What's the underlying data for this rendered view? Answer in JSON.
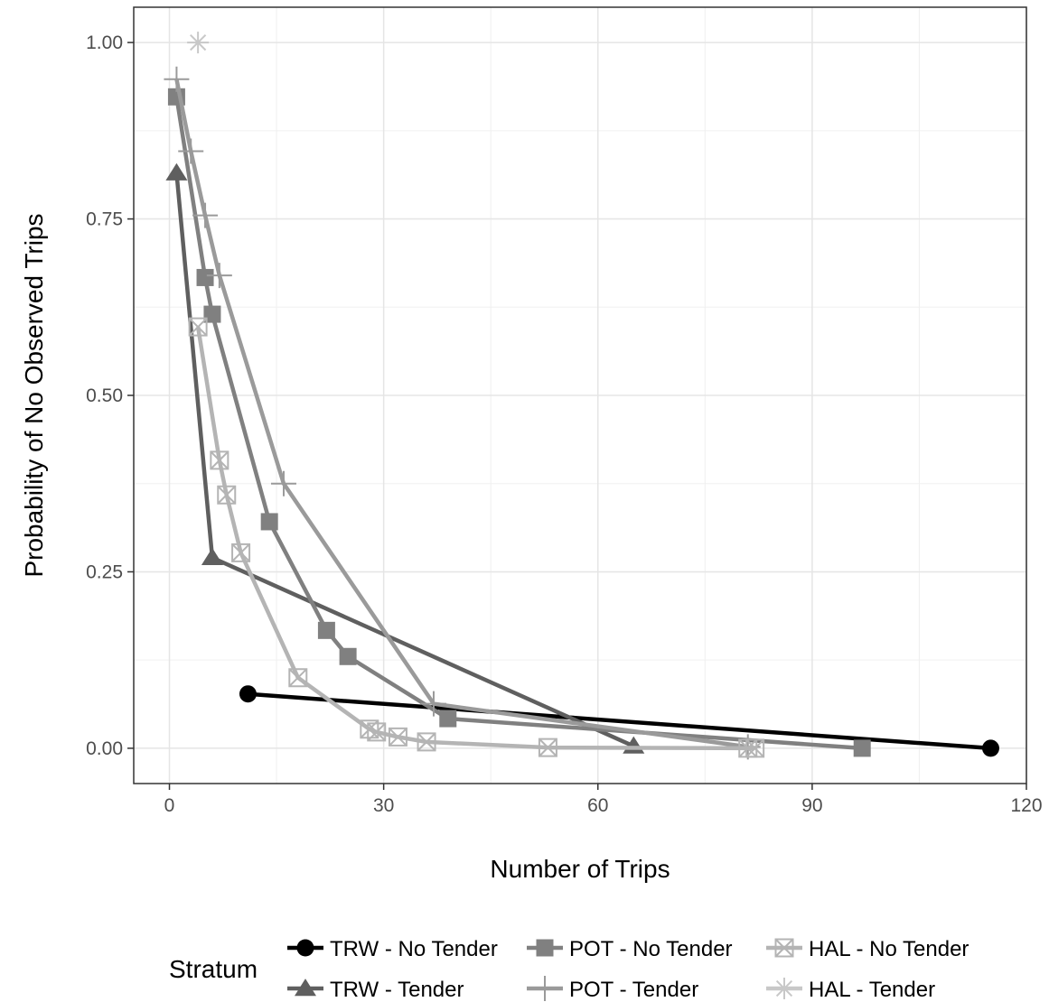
{
  "chart_data": {
    "type": "line",
    "title": "",
    "xlabel": "Number of Trips",
    "ylabel": "Probability of No Observed Trips",
    "xlim": [
      -5,
      120
    ],
    "ylim": [
      -0.05,
      1.05
    ],
    "x_ticks": [
      0,
      30,
      60,
      90,
      120
    ],
    "x_tick_labels": [
      "0",
      "30",
      "60",
      "90",
      "120"
    ],
    "y_ticks": [
      0,
      0.25,
      0.5,
      0.75,
      1.0
    ],
    "y_tick_labels": [
      "0.00",
      "0.25",
      "0.50",
      "0.75",
      "1.00"
    ],
    "grid": true,
    "legend_title": "Stratum",
    "legend_position": "bottom",
    "series": [
      {
        "name": "TRW - No Tender",
        "color": "#000000",
        "marker": "circle",
        "x": [
          11,
          115
        ],
        "y": [
          0.077,
          0.0
        ]
      },
      {
        "name": "TRW - Tender",
        "color": "#5f5f5f",
        "marker": "triangle",
        "x": [
          1,
          6,
          65
        ],
        "y": [
          0.815,
          0.27,
          0.003
        ]
      },
      {
        "name": "POT - No Tender",
        "color": "#808080",
        "marker": "square",
        "x": [
          1,
          5,
          6,
          14,
          22,
          25,
          39,
          97
        ],
        "y": [
          0.923,
          0.667,
          0.615,
          0.321,
          0.167,
          0.13,
          0.042,
          0.0
        ]
      },
      {
        "name": "POT - Tender",
        "color": "#9a9a9a",
        "marker": "plus",
        "x": [
          1,
          3,
          5,
          7,
          16,
          37,
          81
        ],
        "y": [
          0.948,
          0.846,
          0.755,
          0.67,
          0.375,
          0.063,
          0.002
        ]
      },
      {
        "name": "HAL - No Tender",
        "color": "#b4b4b4",
        "marker": "boxcross",
        "x": [
          4,
          7,
          8,
          10,
          18,
          28,
          29,
          32,
          36,
          53,
          81,
          82
        ],
        "y": [
          0.597,
          0.408,
          0.359,
          0.277,
          0.1,
          0.027,
          0.023,
          0.016,
          0.009,
          0.001,
          0.0,
          0.0
        ]
      },
      {
        "name": "HAL - Tender",
        "color": "#c8c8c8",
        "marker": "asterisk",
        "x": [
          4
        ],
        "y": [
          1.0
        ]
      }
    ]
  }
}
